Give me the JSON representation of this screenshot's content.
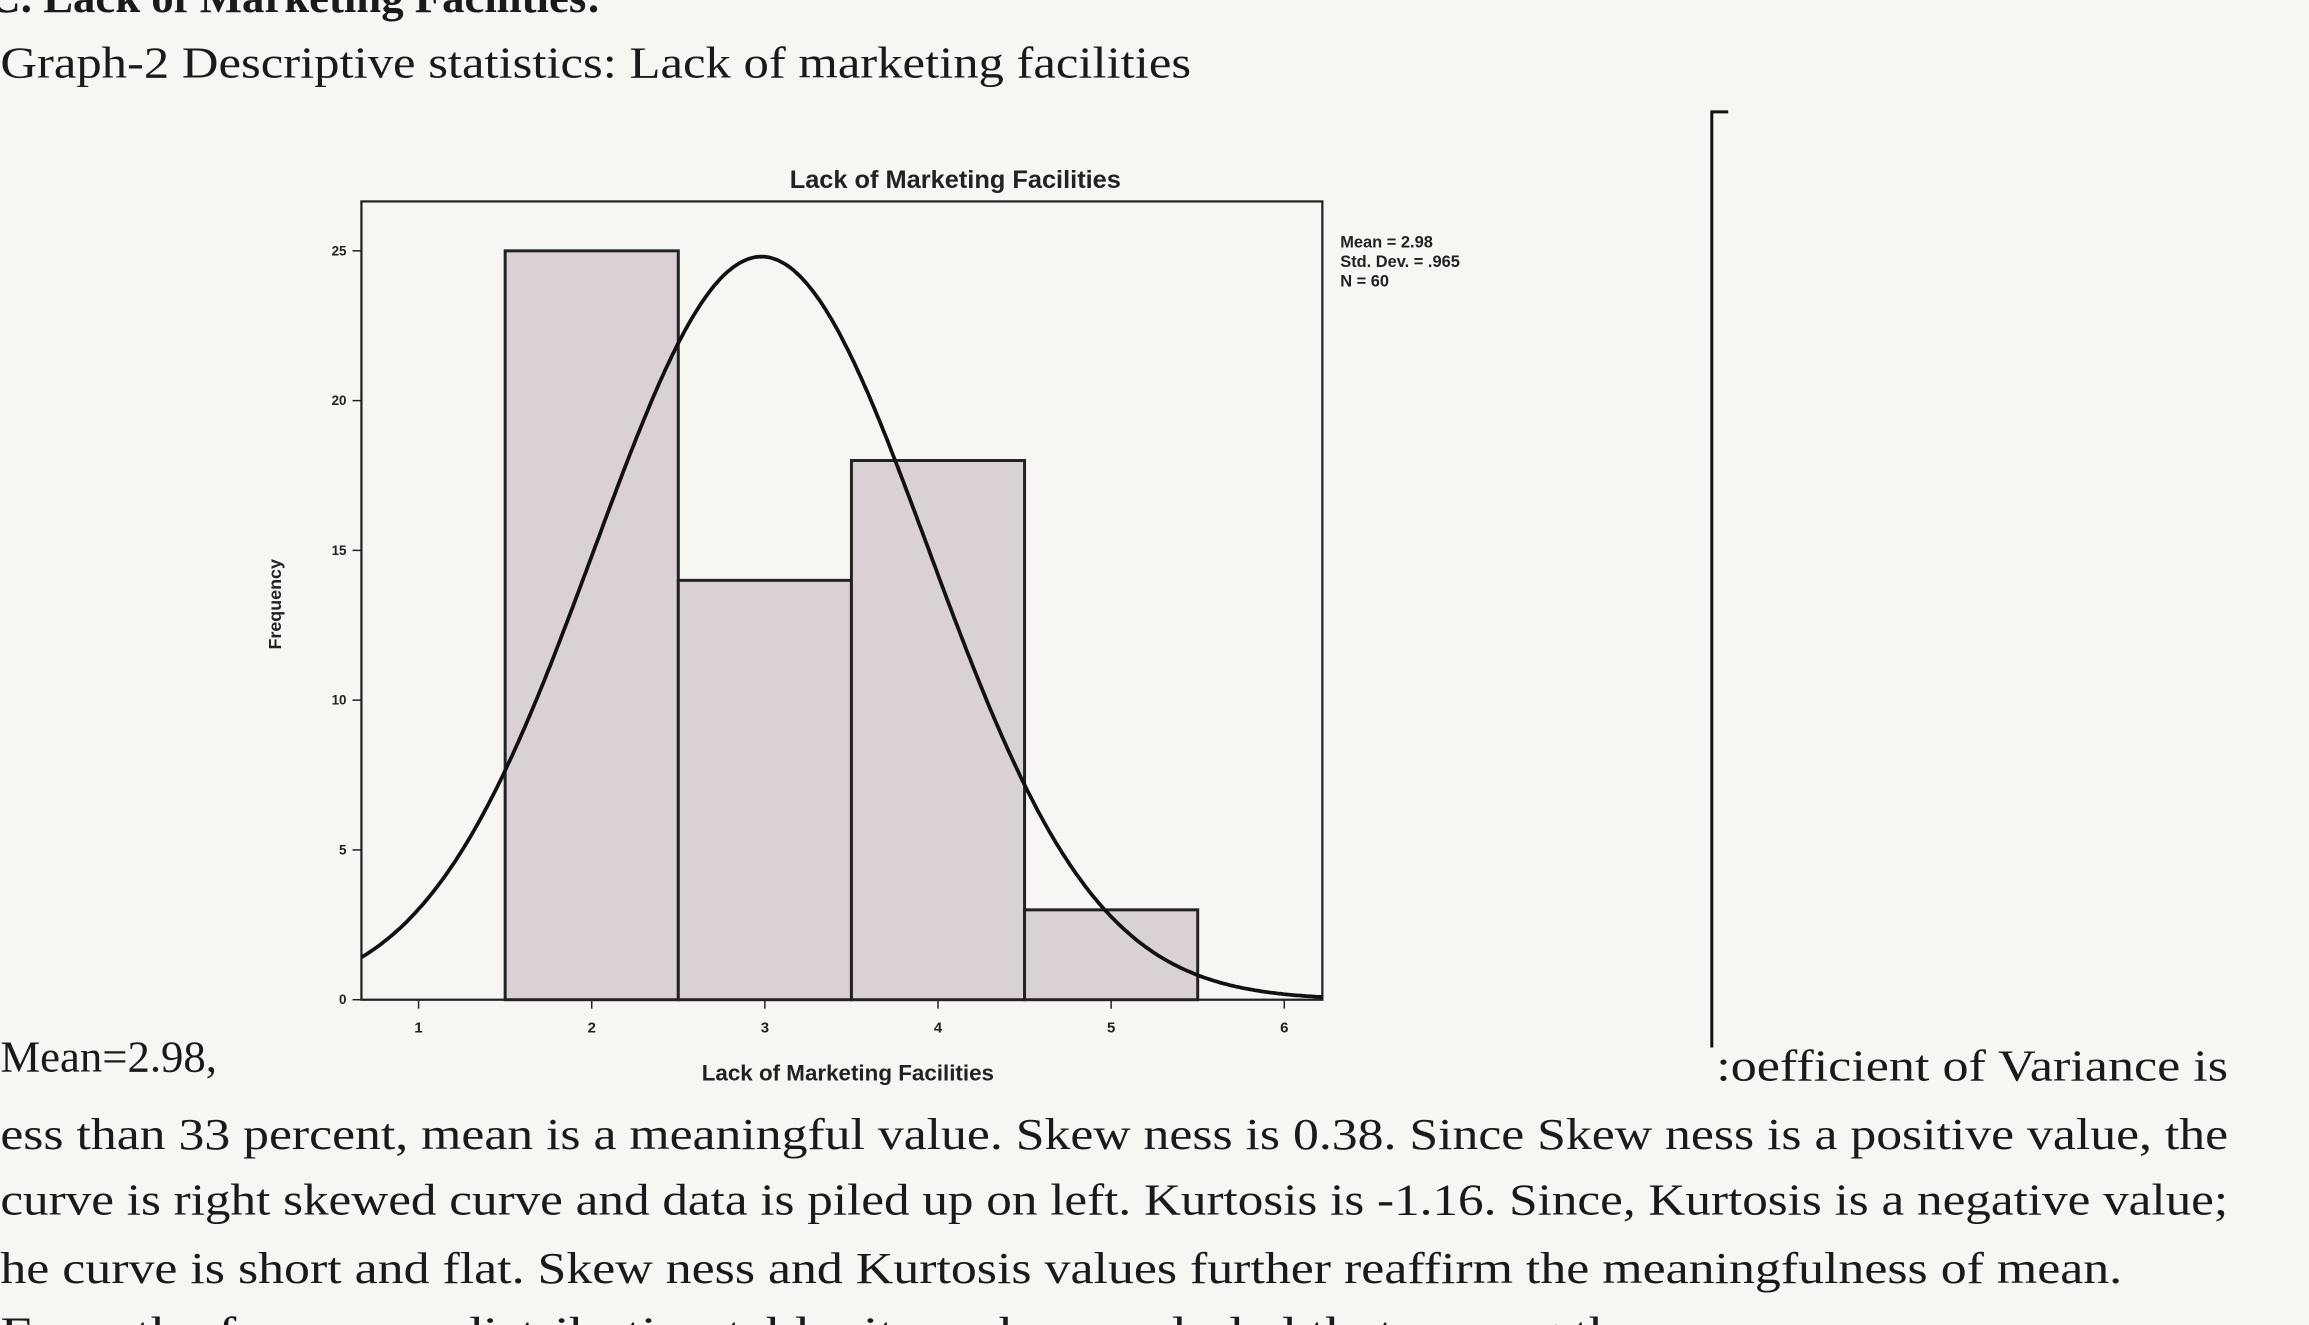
{
  "heading": "C. Lack of Marketing Facilities:",
  "caption": "Graph-2 Descriptive statistics: Lack of marketing facilities",
  "chart_data": {
    "type": "histogram",
    "title": "Lack of Marketing Facilities",
    "x_label": "Lack of Marketing Facilities",
    "y_label": "Frequency",
    "bins": [
      1.5,
      2.5,
      3.5,
      4.5,
      5.5
    ],
    "values": [
      25,
      14,
      18,
      3
    ],
    "color": "#d9d1d5",
    "xlim": [
      0.67,
      6.22
    ],
    "xticks": [
      1,
      2,
      3,
      4,
      5,
      6
    ],
    "ylim": [
      0,
      26.4
    ],
    "yticks": [
      0,
      5,
      10,
      15,
      20,
      25
    ],
    "stats": [
      {
        "value": 2.98,
        "label": "Mean = 2.98"
      },
      {
        "value": 0.965,
        "label": "Std. Dev. = .965"
      },
      {
        "value": 60,
        "label": "N = 60"
      }
    ]
  },
  "paragraph": {
    "left": "Mean=2.98,",
    "right": ":oefficient of Variance is",
    "lines": [
      "ess than 33 percent, mean is a meaningful value. Skew ness is 0.38. Since Skew ness is a positive value, the",
      "curve is right skewed curve and data is piled up on left. Kurtosis is -1.16. Since, Kurtosis is a negative value;",
      "he curve is short and flat. Skew ness and Kurtosis values further reaffirm the meaningfulness of mean.",
      "From the frequency distribution table, it can be concluded that among the"
    ]
  }
}
